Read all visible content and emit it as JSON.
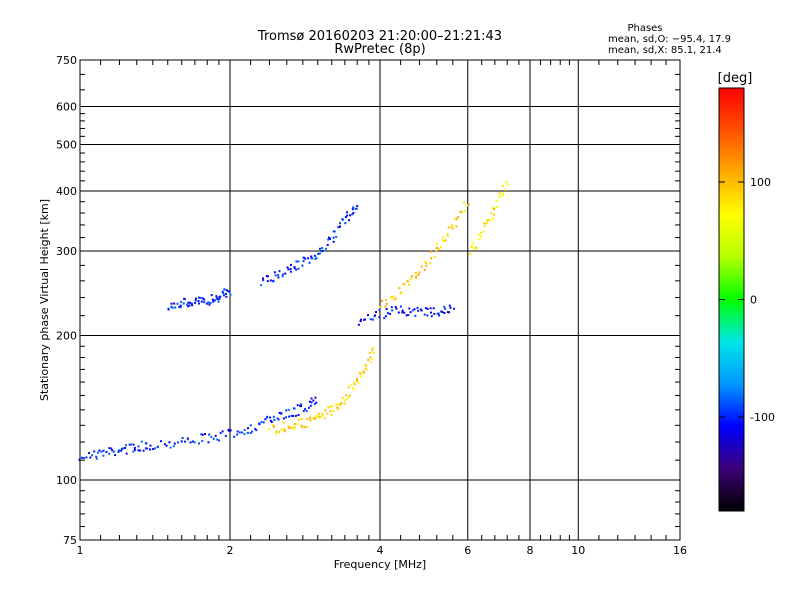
{
  "chart_data": {
    "type": "scatter",
    "title": "Tromsø 20160203 21:20:00–21:21:43",
    "subtitle": "RwPretec (8p)",
    "xlabel": "Frequency [MHz]",
    "ylabel": "Stationary phase Virtual Height [km]",
    "x_scale": "log",
    "y_scale": "log",
    "xlim": [
      1,
      16
    ],
    "ylim": [
      75,
      750
    ],
    "x_ticks": [
      1,
      2,
      4,
      6,
      8,
      10,
      16
    ],
    "x_tick_labels": [
      "1",
      "2",
      "4",
      "6",
      "8",
      "10",
      "16"
    ],
    "y_ticks": [
      75,
      100,
      200,
      300,
      400,
      500,
      600,
      750
    ],
    "y_tick_labels": [
      "75",
      "100",
      "200",
      "300",
      "400",
      "500",
      "600",
      "750"
    ],
    "x_minor_ticks": [
      1.1,
      1.2,
      1.3,
      1.4,
      1.5,
      1.6,
      1.7,
      1.8,
      1.9,
      2.2,
      2.4,
      2.6,
      2.8,
      3,
      3.2,
      3.4,
      3.6,
      3.8,
      4.4,
      4.8,
      5.2,
      5.6,
      6.4,
      6.8,
      7.2,
      7.6,
      8.4,
      8.8,
      9.2,
      9.6,
      11,
      12,
      13,
      14,
      15
    ],
    "y_minor_ticks": [
      80,
      85,
      90,
      95,
      110,
      120,
      130,
      140,
      150,
      160,
      170,
      180,
      190,
      220,
      240,
      260,
      280,
      320,
      340,
      360,
      380,
      420,
      440,
      460,
      480,
      520,
      540,
      560,
      580,
      650,
      700
    ],
    "grid": true,
    "legend_position": "top-right",
    "stats": {
      "header": "Phases",
      "line1": "mean, sd,O: −95.4, 17.9",
      "line2": "mean, sd,X:  85.1, 21.4"
    },
    "colorbar": {
      "label": "[deg]",
      "range": [
        -180,
        180
      ],
      "ticks": [
        100,
        0,
        -100
      ],
      "tick_labels": [
        "100",
        "0",
        "-100"
      ],
      "colors": [
        "#000000",
        "#3c0078",
        "#0000ff",
        "#0096ff",
        "#00e6e6",
        "#00ff00",
        "#b4ff00",
        "#ffff00",
        "#ffaa00",
        "#ff5000",
        "#ff0000"
      ]
    },
    "series": [
      {
        "trace": "O-lower",
        "phase": -100,
        "x": [
          1.0,
          1.05,
          1.1,
          1.15,
          1.2,
          1.25,
          1.3,
          1.35,
          1.4,
          1.5,
          1.6,
          1.7,
          1.8,
          1.9,
          2.0,
          2.1,
          2.2,
          2.3,
          2.4,
          2.5,
          2.6,
          2.7,
          2.8,
          2.9,
          3.0
        ],
        "y": [
          113,
          113,
          114,
          115,
          116,
          117,
          118,
          118,
          119,
          120,
          121,
          122,
          123,
          124,
          125,
          127,
          129,
          131,
          134,
          136,
          138,
          140,
          142,
          145,
          148
        ]
      },
      {
        "trace": "O-E-shelf",
        "phase": -100,
        "x": [
          1.5,
          1.55,
          1.6,
          1.65,
          1.7,
          1.75,
          1.8,
          1.85,
          1.9,
          1.95,
          2.0
        ],
        "y": [
          233,
          234,
          234,
          235,
          236,
          236,
          238,
          240,
          243,
          246,
          250
        ]
      },
      {
        "trace": "O-F",
        "phase": -100,
        "x": [
          2.3,
          2.4,
          2.5,
          2.6,
          2.7,
          2.8,
          2.9,
          3.0,
          3.1,
          3.2,
          3.3,
          3.4,
          3.5,
          3.6
        ],
        "y": [
          260,
          265,
          270,
          275,
          280,
          285,
          290,
          300,
          310,
          320,
          335,
          350,
          365,
          380
        ]
      },
      {
        "trace": "O-F2",
        "phase": -105,
        "x": [
          3.6,
          3.8,
          4.0,
          4.2,
          4.4,
          4.6,
          4.8,
          5.0,
          5.2,
          5.4,
          5.6
        ],
        "y": [
          215,
          218,
          222,
          225,
          226,
          226,
          225,
          224,
          225,
          227,
          230
        ]
      },
      {
        "trace": "X-lower",
        "phase": 90,
        "x": [
          2.4,
          2.5,
          2.6,
          2.7,
          2.8,
          2.9,
          3.0,
          3.1,
          3.2,
          3.3,
          3.4,
          3.5,
          3.6,
          3.7,
          3.8,
          3.9
        ],
        "y": [
          128,
          129,
          130,
          131,
          132,
          134,
          136,
          138,
          141,
          145,
          150,
          156,
          163,
          171,
          180,
          190
        ]
      },
      {
        "trace": "X-F",
        "phase": 95,
        "x": [
          4.0,
          4.2,
          4.4,
          4.6,
          4.8,
          5.0,
          5.2,
          5.4,
          5.6,
          5.8,
          6.0
        ],
        "y": [
          230,
          240,
          250,
          262,
          275,
          290,
          305,
          320,
          340,
          360,
          390
        ]
      },
      {
        "trace": "X-upper",
        "phase": 80,
        "x": [
          6.0,
          6.2,
          6.4,
          6.6,
          6.8,
          7.0,
          7.2
        ],
        "y": [
          300,
          310,
          330,
          350,
          375,
          400,
          420
        ]
      }
    ]
  }
}
